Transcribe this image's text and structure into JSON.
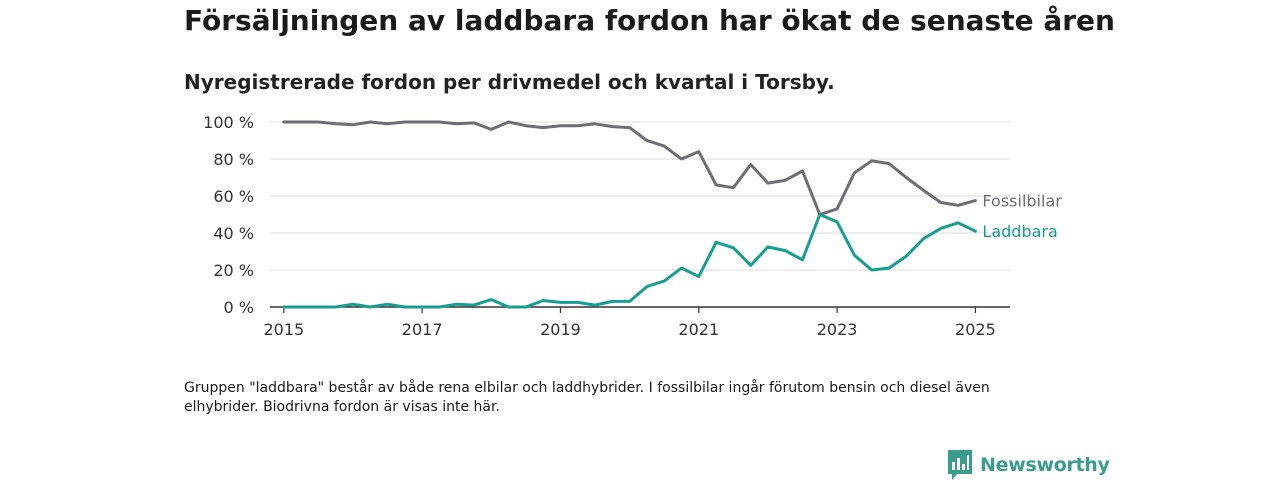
{
  "header": {
    "title": "Försäljningen av laddbara fordon har ökat de senaste åren",
    "subtitle": "Nyregistrerade fordon per drivmedel och kvartal i Torsby."
  },
  "chart_data": {
    "type": "line",
    "x_unit": "year (quarterly)",
    "x": [
      2015.0,
      2015.25,
      2015.5,
      2015.75,
      2016.0,
      2016.25,
      2016.5,
      2016.75,
      2017.0,
      2017.25,
      2017.5,
      2017.75,
      2018.0,
      2018.25,
      2018.5,
      2018.75,
      2019.0,
      2019.25,
      2019.5,
      2019.75,
      2020.0,
      2020.25,
      2020.5,
      2020.75,
      2021.0,
      2021.25,
      2021.5,
      2021.75,
      2022.0,
      2022.25,
      2022.5,
      2022.75,
      2023.0,
      2023.25,
      2023.5,
      2023.75,
      2024.0,
      2024.25,
      2024.5,
      2024.75,
      2025.0
    ],
    "series": [
      {
        "name": "Fossilbilar",
        "color": "#6e6d73",
        "values": [
          100,
          100,
          100,
          99,
          98.5,
          100,
          99,
          100,
          100,
          100,
          99,
          99.5,
          96,
          100,
          98,
          97,
          98,
          98,
          99,
          97.5,
          97,
          90,
          87,
          80,
          84,
          66,
          64.5,
          77,
          67,
          68.5,
          73.5,
          50,
          53,
          72.5,
          79,
          77.5,
          70,
          63,
          56.5,
          55,
          57.5
        ]
      },
      {
        "name": "Laddbara",
        "color": "#179e93",
        "values": [
          0,
          0,
          0,
          0,
          1.5,
          0,
          1.5,
          0,
          0,
          0,
          1.5,
          1,
          4,
          0,
          0,
          3.5,
          2.5,
          2.5,
          1,
          3,
          3,
          11,
          14,
          21,
          16.5,
          35,
          32,
          22.5,
          32.5,
          30.5,
          25.5,
          50,
          46,
          28,
          20,
          21,
          27.5,
          37,
          42.5,
          45.5,
          41
        ]
      }
    ],
    "xticks": [
      2015,
      2017,
      2019,
      2021,
      2023,
      2025
    ],
    "xtick_labels": [
      "2015",
      "2017",
      "2019",
      "2021",
      "2023",
      "2025"
    ],
    "yticks": [
      0,
      20,
      40,
      60,
      80,
      100
    ],
    "ytick_labels": [
      "0 %",
      "20 %",
      "40 %",
      "60 %",
      "80 %",
      "100 %"
    ],
    "xlim": [
      2014.8,
      2025.5
    ],
    "ylim": [
      0,
      100
    ],
    "grid": "horizontal",
    "legend": "end-of-line labels"
  },
  "footnote": "Gruppen \"laddbara\" består av både rena elbilar och laddhybrider. I fossilbilar ingår förutom bensin och diesel även elhybrider. Biodrivna fordon är visas inte här.",
  "brand": {
    "name": "Newsworthy",
    "icon": "newsworthy-logo-icon",
    "color": "#3a9c8c"
  }
}
